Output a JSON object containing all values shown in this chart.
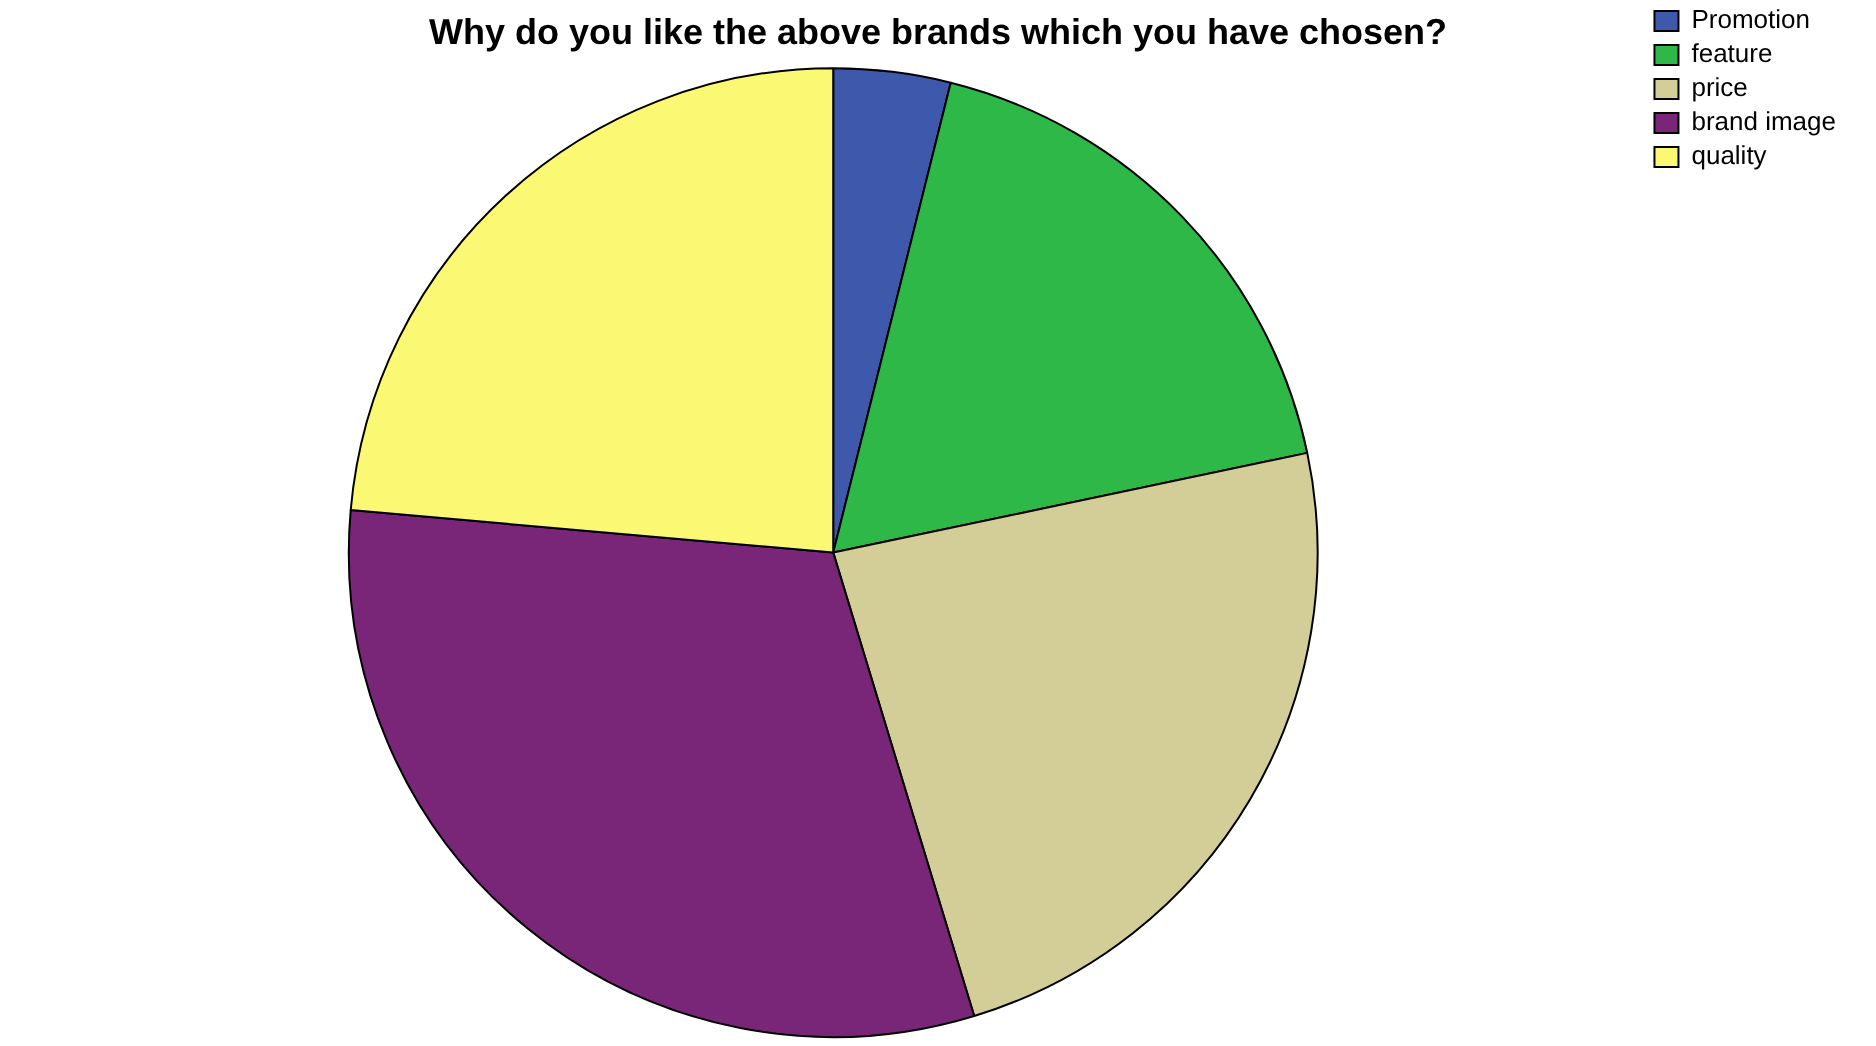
{
  "chart_data": {
    "type": "pie",
    "title": "Why do you like the above brands which you have chosen?",
    "categories": [
      "Promotion",
      "feature",
      "price",
      "brand image",
      "quality"
    ],
    "values": [
      3.9,
      17.8,
      23.6,
      31.1,
      23.6
    ],
    "colors": [
      "#3e58ac",
      "#2eb848",
      "#d3ce97",
      "#7a2678",
      "#fbf873"
    ],
    "legend": "top right"
  }
}
